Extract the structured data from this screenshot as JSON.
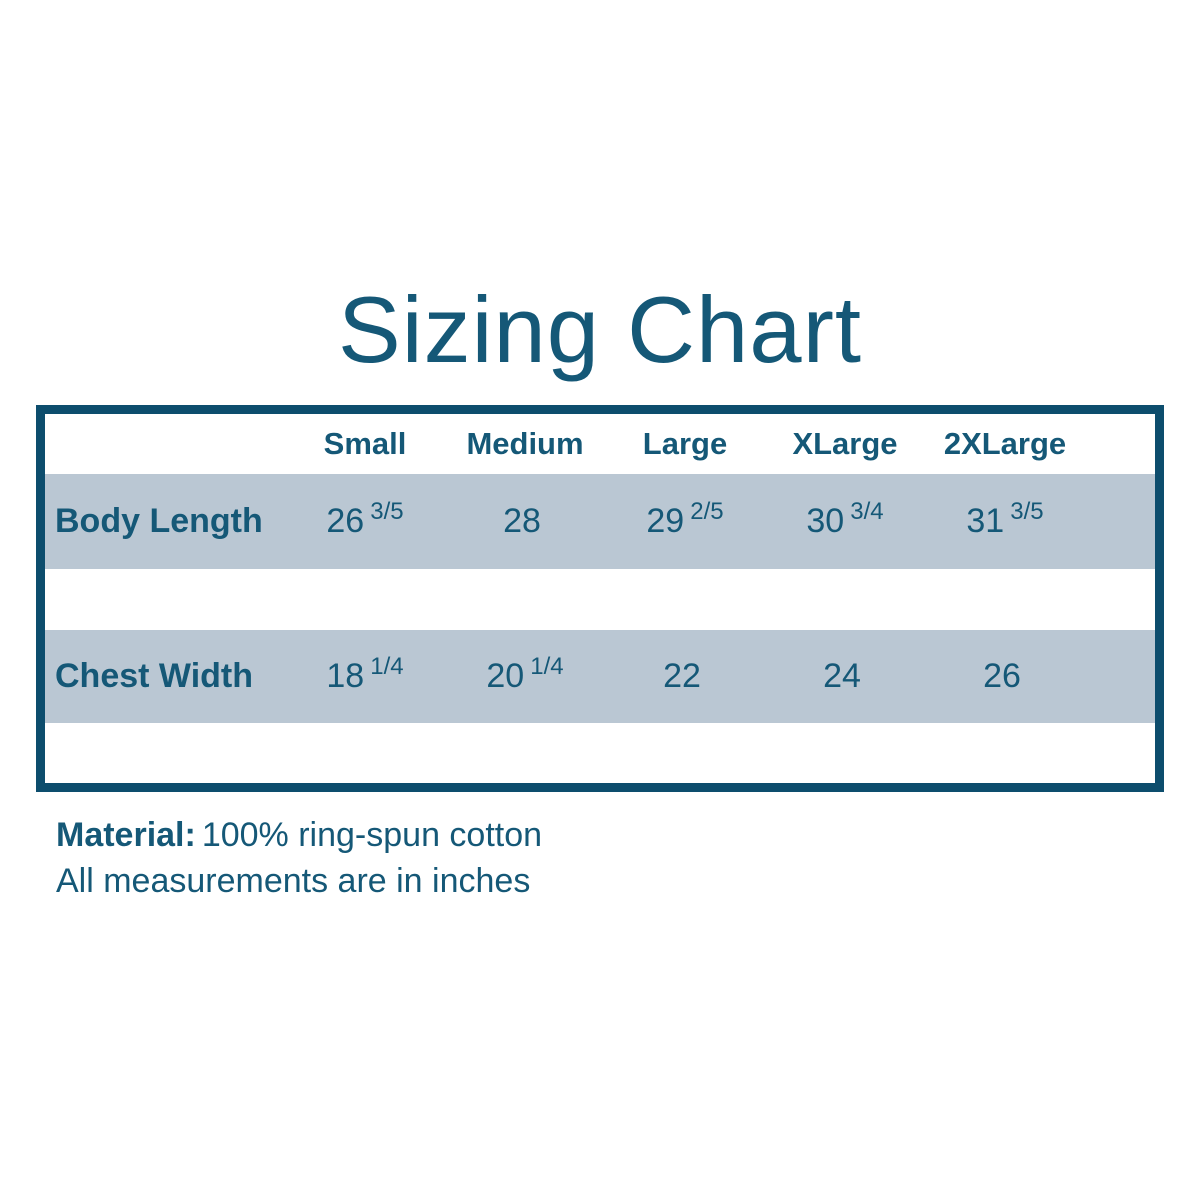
{
  "title": "Sizing Chart",
  "table": {
    "columns": [
      "Small",
      "Medium",
      "Large",
      "XLarge",
      "2XLarge"
    ],
    "rows": [
      {
        "label": "Body Length",
        "cells": [
          {
            "whole": "26",
            "frac": "3/5"
          },
          {
            "whole": "28",
            "frac": ""
          },
          {
            "whole": "29",
            "frac": "2/5"
          },
          {
            "whole": "30",
            "frac": "3/4"
          },
          {
            "whole": "31",
            "frac": "3/5"
          }
        ]
      },
      {
        "label": "Chest Width",
        "cells": [
          {
            "whole": "18",
            "frac": "1/4"
          },
          {
            "whole": "20",
            "frac": "1/4"
          },
          {
            "whole": "22",
            "frac": ""
          },
          {
            "whole": "24",
            "frac": ""
          },
          {
            "whole": "26",
            "frac": ""
          }
        ]
      }
    ]
  },
  "footer": {
    "material_label": "Material:",
    "material_value": "100% ring-spun cotton",
    "note": "All measurements are in inches"
  },
  "colors": {
    "text_teal": "#155877",
    "border_teal": "#0d4d6d",
    "row_gray": "#bac7d3",
    "background": "#ffffff"
  }
}
